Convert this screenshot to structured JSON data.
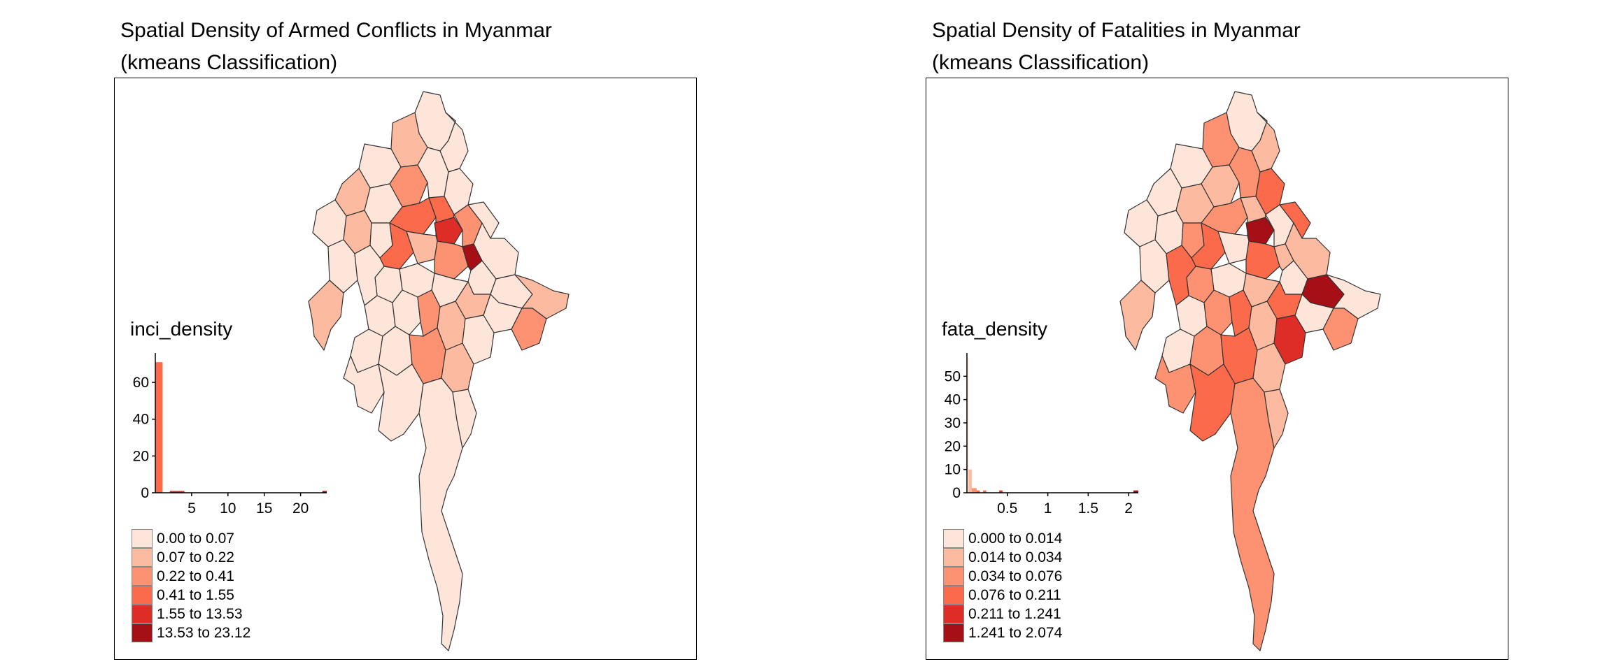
{
  "maps": [
    {
      "title_line1": "Spatial Density of Armed Conflicts in Myanmar",
      "title_line2": "(kmeans Classification)",
      "variable": "inci_density",
      "palette": [
        "#fee5d9",
        "#fcbba1",
        "#fc9272",
        "#fb6a4a",
        "#de2d26",
        "#a50f15"
      ],
      "legend": [
        "0.00 to 0.07",
        "0.07 to 0.22",
        "0.22 to 0.41",
        "0.41 to 1.55",
        "1.55 to 13.53",
        "13.53 to 23.12"
      ],
      "histogram": {
        "x_ticks": [
          "5",
          "10",
          "15",
          "20"
        ],
        "x_tick_values": [
          5,
          10,
          15,
          20
        ],
        "x_range": [
          0,
          23.6
        ],
        "y_ticks": [
          "0",
          "20",
          "40",
          "60"
        ],
        "y_tick_values": [
          0,
          20,
          40,
          60
        ],
        "y_range": [
          0,
          76
        ],
        "bars": [
          {
            "x0": 0,
            "x1": 1,
            "count": 71,
            "class": 3
          },
          {
            "x0": 2,
            "x1": 4,
            "count": 1,
            "class": 4
          },
          {
            "x0": 23,
            "x1": 23.6,
            "count": 1,
            "class": 5
          }
        ]
      },
      "district_classes": [
        0,
        0,
        1,
        0,
        2,
        0,
        0,
        1,
        0,
        3,
        3,
        4,
        2,
        0,
        0,
        0,
        1,
        0,
        3,
        1,
        2,
        5,
        0,
        0,
        1,
        2,
        0,
        1,
        0,
        0,
        0,
        0,
        1,
        0,
        0,
        0,
        2,
        1,
        0,
        0,
        0,
        2,
        1,
        0,
        0,
        0,
        0
      ]
    },
    {
      "title_line1": "Spatial Density of Fatalities in Myanmar",
      "title_line2": "(kmeans Classification)",
      "variable": "fata_density",
      "palette": [
        "#fee5d9",
        "#fcbba1",
        "#fc9272",
        "#fb6a4a",
        "#de2d26",
        "#a50f15"
      ],
      "legend": [
        "0.000 to 0.014",
        "0.014 to 0.034",
        "0.034 to 0.076",
        "0.076 to 0.211",
        "0.211 to 1.241",
        "1.241 to 2.074"
      ],
      "histogram": {
        "x_ticks": [
          "0.5",
          "1",
          "1.5",
          "2"
        ],
        "x_tick_values": [
          0.5,
          1,
          1.5,
          2
        ],
        "x_range": [
          0,
          2.12
        ],
        "y_ticks": [
          "0",
          "10",
          "20",
          "30",
          "40",
          "50"
        ],
        "y_tick_values": [
          0,
          10,
          20,
          30,
          40,
          50
        ],
        "y_range": [
          0,
          60
        ],
        "bars": [
          {
            "x0": 0,
            "x1": 0.02,
            "count": 58,
            "class": 0
          },
          {
            "x0": 0.02,
            "x1": 0.06,
            "count": 10,
            "class": 1
          },
          {
            "x0": 0.06,
            "x1": 0.12,
            "count": 2,
            "class": 2
          },
          {
            "x0": 0.12,
            "x1": 0.16,
            "count": 1,
            "class": 3
          },
          {
            "x0": 0.2,
            "x1": 0.24,
            "count": 1,
            "class": 3
          },
          {
            "x0": 0.4,
            "x1": 0.44,
            "count": 1,
            "class": 4
          },
          {
            "x0": 2.06,
            "x1": 2.12,
            "count": 1,
            "class": 5
          }
        ]
      },
      "district_classes": [
        0,
        1,
        2,
        0,
        1,
        2,
        3,
        0,
        1,
        2,
        1,
        5,
        0,
        3,
        1,
        0,
        0,
        2,
        3,
        0,
        3,
        1,
        0,
        5,
        0,
        2,
        0,
        3,
        1,
        0,
        2,
        0,
        1,
        3,
        0,
        2,
        3,
        1,
        4,
        0,
        2,
        3,
        1,
        2,
        3,
        2,
        1
      ]
    }
  ]
}
